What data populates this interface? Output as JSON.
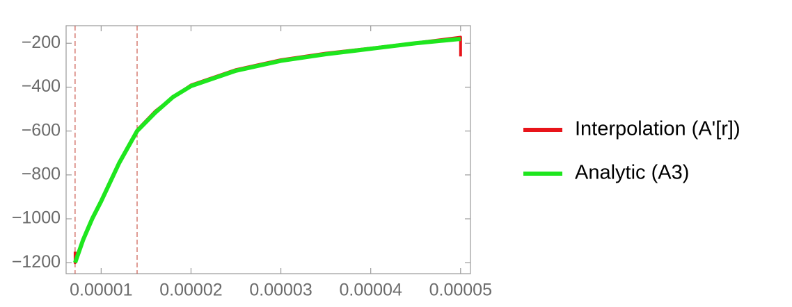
{
  "chart_data": {
    "type": "line",
    "xlim": [
      6.1e-06,
      5.11e-05
    ],
    "ylim": [
      -1250,
      -120
    ],
    "xticks": [
      {
        "value": 1e-05,
        "label": "0.00001"
      },
      {
        "value": 2e-05,
        "label": "0.00002"
      },
      {
        "value": 3e-05,
        "label": "0.00003"
      },
      {
        "value": 4e-05,
        "label": "0.00004"
      },
      {
        "value": 5e-05,
        "label": "0.00005"
      }
    ],
    "yticks": [
      {
        "value": -200,
        "label": "−200"
      },
      {
        "value": -400,
        "label": "−400"
      },
      {
        "value": -600,
        "label": "−600"
      },
      {
        "value": -800,
        "label": "−800"
      },
      {
        "value": -1000,
        "label": "−1000"
      },
      {
        "value": -1200,
        "label": "−1200"
      }
    ],
    "vlines": [
      7.1e-06,
      1.4e-05
    ],
    "series": [
      {
        "name": "Interpolation (A'[r])",
        "color": "#e8141a",
        "x": [
          7.1e-06,
          7.1e-06,
          8e-06,
          9e-06,
          1e-05,
          1.2e-05,
          1.4e-05,
          1.6e-05,
          1.8e-05,
          2e-05,
          2.5e-05,
          3e-05,
          3.5e-05,
          4e-05,
          4.5e-05,
          5e-05,
          5e-05
        ],
        "values": [
          -1150,
          -1200,
          -1090,
          -1005,
          -915,
          -750,
          -595,
          -510,
          -445,
          -390,
          -320,
          -275,
          -245,
          -222,
          -198,
          -172,
          -260
        ]
      },
      {
        "name": "Analytic (A3)",
        "color": "#1ee61e",
        "x": [
          7.1e-06,
          8e-06,
          9e-06,
          1e-05,
          1.2e-05,
          1.4e-05,
          1.6e-05,
          1.8e-05,
          2e-05,
          2.5e-05,
          3e-05,
          3.5e-05,
          4e-05,
          4.5e-05,
          5e-05
        ],
        "values": [
          -1200,
          -1095,
          -1000,
          -920,
          -746,
          -600,
          -517,
          -445,
          -395,
          -325,
          -280,
          -250,
          -225,
          -200,
          -180
        ]
      }
    ]
  }
}
